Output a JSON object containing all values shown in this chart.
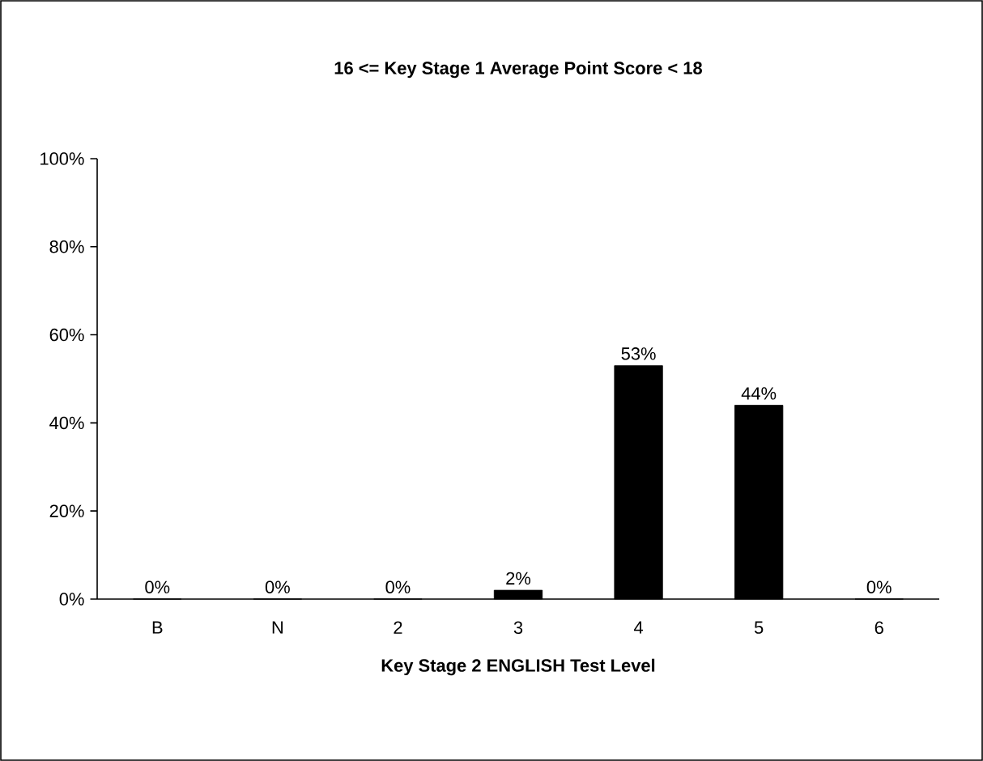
{
  "chart_data": {
    "type": "bar",
    "title": "16 <= Key Stage 1 Average Point Score < 18",
    "xlabel": "Key Stage 2 ENGLISH Test Level",
    "categories": [
      "B",
      "N",
      "2",
      "3",
      "4",
      "5",
      "6"
    ],
    "values": [
      0,
      0,
      0,
      2,
      53,
      44,
      0
    ],
    "value_labels": [
      "0%",
      "0%",
      "0%",
      "2%",
      "53%",
      "44%",
      "0%"
    ],
    "color": "#000000",
    "ylim": [
      0,
      100
    ],
    "yticks": [
      {
        "value": 0,
        "label": "0%"
      },
      {
        "value": 20,
        "label": "20%"
      },
      {
        "value": 40,
        "label": "40%"
      },
      {
        "value": 60,
        "label": "60%"
      },
      {
        "value": 80,
        "label": "80%"
      },
      {
        "value": 100,
        "label": "100%"
      }
    ],
    "grid": false
  }
}
